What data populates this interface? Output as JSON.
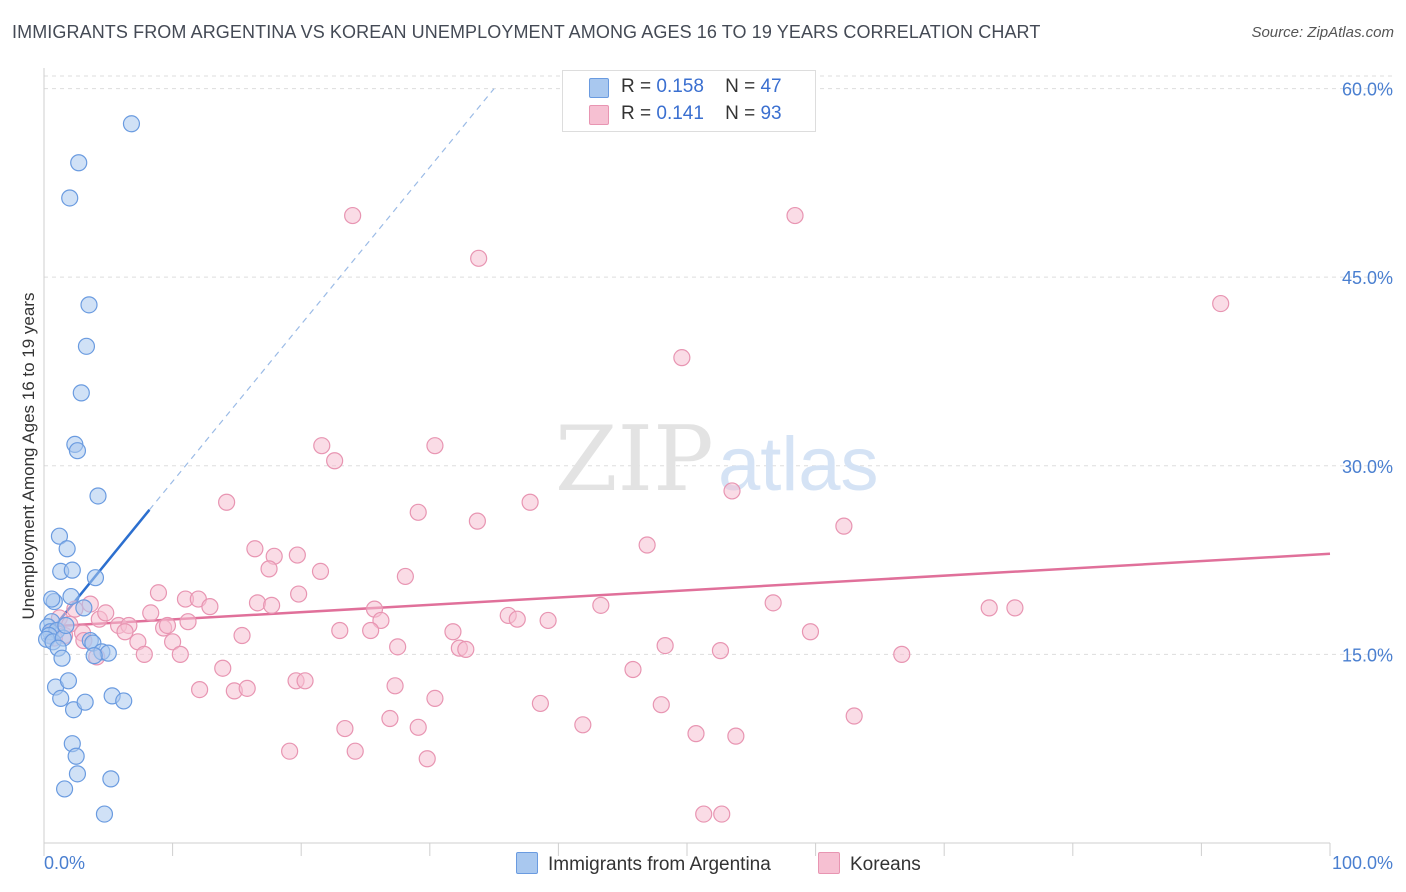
{
  "title": "IMMIGRANTS FROM ARGENTINA VS KOREAN UNEMPLOYMENT AMONG AGES 16 TO 19 YEARS CORRELATION CHART",
  "source": "Source: ZipAtlas.com",
  "watermark": {
    "zip": "ZIP",
    "atlas": "atlas"
  },
  "legend": {
    "rows": [
      {
        "r_label": "R =",
        "r_value": "0.158",
        "n_label": "N =",
        "n_value": "47"
      },
      {
        "r_label": "R =",
        "r_value": "0.141",
        "n_label": "N =",
        "n_value": "93"
      }
    ]
  },
  "bottom_legend": {
    "series1": "Immigrants from Argentina",
    "series2": "Koreans"
  },
  "colors": {
    "blue_fill": "#a9c8ef",
    "blue_stroke": "#6a9be0",
    "blue_line": "#2c6fcf",
    "pink_fill": "#f6c0d2",
    "pink_stroke": "#e895b2",
    "pink_line": "#e0709a",
    "tick_text": "#4a7fd0",
    "grid": "#dddddd"
  },
  "chart_data": {
    "type": "scatter",
    "title": "IMMIGRANTS FROM ARGENTINA VS KOREAN UNEMPLOYMENT AMONG AGES 16 TO 19 YEARS CORRELATION CHART",
    "xlabel": "",
    "ylabel": "Unemployment Among Ages 16 to 19 years",
    "xlim": [
      0,
      100
    ],
    "ylim": [
      0,
      61
    ],
    "x_tick_labels": [
      "0.0%",
      "100.0%"
    ],
    "y_ticks": [
      15,
      30,
      45,
      60
    ],
    "y_tick_labels": [
      "15.0%",
      "30.0%",
      "45.0%",
      "60.0%"
    ],
    "series": [
      {
        "name": "Immigrants from Argentina",
        "R": 0.158,
        "N": 47,
        "trend_solid": [
          [
            0.0,
            16.2
          ],
          [
            8.2,
            26.5
          ]
        ],
        "trend_dashed": [
          [
            8.2,
            26.5
          ],
          [
            35.0,
            60.0
          ]
        ],
        "points": [
          [
            6.8,
            57.2
          ],
          [
            2.7,
            54.1
          ],
          [
            2.0,
            51.3
          ],
          [
            3.5,
            42.8
          ],
          [
            3.3,
            39.5
          ],
          [
            2.9,
            35.8
          ],
          [
            2.4,
            31.7
          ],
          [
            2.6,
            31.2
          ],
          [
            4.2,
            27.6
          ],
          [
            1.2,
            24.4
          ],
          [
            1.8,
            23.4
          ],
          [
            4.0,
            21.1
          ],
          [
            1.3,
            21.6
          ],
          [
            2.2,
            21.7
          ],
          [
            2.1,
            19.6
          ],
          [
            0.8,
            19.2
          ],
          [
            3.1,
            18.7
          ],
          [
            0.6,
            17.6
          ],
          [
            0.3,
            17.2
          ],
          [
            0.5,
            16.8
          ],
          [
            1.0,
            16.9
          ],
          [
            0.4,
            16.5
          ],
          [
            0.2,
            16.2
          ],
          [
            0.7,
            16.0
          ],
          [
            1.5,
            16.3
          ],
          [
            3.6,
            16.1
          ],
          [
            3.8,
            15.9
          ],
          [
            1.1,
            15.5
          ],
          [
            4.5,
            15.2
          ],
          [
            5.0,
            15.1
          ],
          [
            1.4,
            14.7
          ],
          [
            3.9,
            14.9
          ],
          [
            0.9,
            12.4
          ],
          [
            1.9,
            12.9
          ],
          [
            1.3,
            11.5
          ],
          [
            2.3,
            10.6
          ],
          [
            3.2,
            11.2
          ],
          [
            5.3,
            11.7
          ],
          [
            6.2,
            11.3
          ],
          [
            2.2,
            7.9
          ],
          [
            2.5,
            6.9
          ],
          [
            2.6,
            5.5
          ],
          [
            5.2,
            5.1
          ],
          [
            1.6,
            4.3
          ],
          [
            4.7,
            2.3
          ],
          [
            0.6,
            19.4
          ],
          [
            1.7,
            17.3
          ]
        ]
      },
      {
        "name": "Koreans",
        "R": 0.141,
        "N": 93,
        "trend_solid": [
          [
            0.0,
            17.2
          ],
          [
            100.0,
            23.0
          ]
        ],
        "points": [
          [
            24.0,
            49.9
          ],
          [
            58.4,
            49.9
          ],
          [
            33.8,
            46.5
          ],
          [
            91.5,
            42.9
          ],
          [
            49.6,
            38.6
          ],
          [
            21.6,
            31.6
          ],
          [
            30.4,
            31.6
          ],
          [
            22.6,
            30.4
          ],
          [
            53.5,
            28.0
          ],
          [
            14.2,
            27.1
          ],
          [
            37.8,
            27.1
          ],
          [
            29.1,
            26.3
          ],
          [
            33.7,
            25.6
          ],
          [
            62.2,
            25.2
          ],
          [
            46.9,
            23.7
          ],
          [
            16.4,
            23.4
          ],
          [
            17.9,
            22.8
          ],
          [
            19.7,
            22.9
          ],
          [
            17.5,
            21.8
          ],
          [
            21.5,
            21.6
          ],
          [
            28.1,
            21.2
          ],
          [
            8.9,
            19.9
          ],
          [
            19.8,
            19.8
          ],
          [
            11.0,
            19.4
          ],
          [
            12.0,
            19.4
          ],
          [
            16.6,
            19.1
          ],
          [
            17.7,
            18.9
          ],
          [
            43.3,
            18.9
          ],
          [
            56.7,
            19.1
          ],
          [
            12.9,
            18.8
          ],
          [
            25.7,
            18.6
          ],
          [
            8.3,
            18.3
          ],
          [
            73.5,
            18.7
          ],
          [
            75.5,
            18.7
          ],
          [
            36.1,
            18.1
          ],
          [
            36.8,
            17.8
          ],
          [
            39.2,
            17.7
          ],
          [
            26.2,
            17.7
          ],
          [
            11.2,
            17.6
          ],
          [
            3.6,
            19.0
          ],
          [
            2.4,
            18.6
          ],
          [
            4.3,
            17.8
          ],
          [
            5.8,
            17.3
          ],
          [
            6.6,
            17.3
          ],
          [
            9.3,
            17.1
          ],
          [
            6.3,
            16.8
          ],
          [
            23.0,
            16.9
          ],
          [
            31.8,
            16.8
          ],
          [
            25.4,
            16.9
          ],
          [
            59.6,
            16.8
          ],
          [
            15.4,
            16.5
          ],
          [
            3.0,
            16.7
          ],
          [
            1.6,
            16.5
          ],
          [
            3.1,
            16.1
          ],
          [
            7.3,
            16.0
          ],
          [
            10.0,
            16.0
          ],
          [
            27.5,
            15.6
          ],
          [
            32.3,
            15.5
          ],
          [
            32.8,
            15.4
          ],
          [
            48.3,
            15.7
          ],
          [
            52.6,
            15.3
          ],
          [
            66.7,
            15.0
          ],
          [
            4.1,
            14.8
          ],
          [
            7.8,
            15.0
          ],
          [
            10.6,
            15.0
          ],
          [
            13.9,
            13.9
          ],
          [
            45.8,
            13.8
          ],
          [
            19.6,
            12.9
          ],
          [
            20.3,
            12.9
          ],
          [
            27.3,
            12.5
          ],
          [
            12.1,
            12.2
          ],
          [
            14.8,
            12.1
          ],
          [
            15.8,
            12.3
          ],
          [
            30.4,
            11.5
          ],
          [
            38.6,
            11.1
          ],
          [
            48.0,
            11.0
          ],
          [
            26.9,
            9.9
          ],
          [
            63.0,
            10.1
          ],
          [
            23.4,
            9.1
          ],
          [
            29.1,
            9.2
          ],
          [
            41.9,
            9.4
          ],
          [
            50.7,
            8.7
          ],
          [
            53.8,
            8.5
          ],
          [
            19.1,
            7.3
          ],
          [
            24.2,
            7.3
          ],
          [
            29.8,
            6.7
          ],
          [
            51.3,
            2.3
          ],
          [
            52.7,
            2.3
          ],
          [
            0.8,
            16.3
          ],
          [
            1.2,
            17.9
          ],
          [
            2.0,
            17.4
          ],
          [
            4.8,
            18.3
          ],
          [
            9.6,
            17.3
          ]
        ]
      }
    ]
  }
}
